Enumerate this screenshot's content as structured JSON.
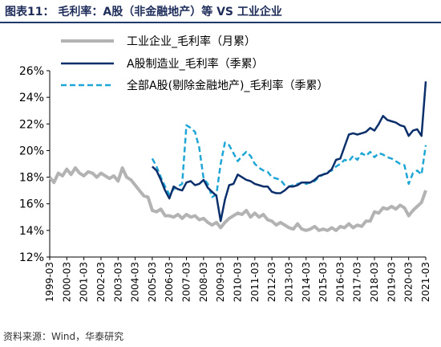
{
  "title": "图表11： 毛利率：A股（非金融地产）等 VS 工业企业",
  "source": "资料来源：Wind，华泰研究",
  "colors": {
    "industrial": "#b3b3b3",
    "a_share": "#0b2f6b",
    "ex_fin": "#1fa6d6"
  },
  "chart_data": {
    "type": "line",
    "title": "图表11： 毛利率：A股（非金融地产）等 VS 工业企业",
    "xlabel": "",
    "ylabel": "",
    "ylim": [
      12,
      26
    ],
    "y_ticks": [
      "12%",
      "14%",
      "16%",
      "18%",
      "20%",
      "22%",
      "24%",
      "26%"
    ],
    "xlim": [
      "1999-03",
      "2021-03"
    ],
    "x_ticks": [
      "1999-03",
      "2000-03",
      "2001-03",
      "2002-03",
      "2003-03",
      "2004-03",
      "2005-03",
      "2006-03",
      "2007-03",
      "2008-03",
      "2009-03",
      "2010-03",
      "2011-03",
      "2012-03",
      "2013-03",
      "2014-03",
      "2015-03",
      "2016-03",
      "2017-03",
      "2018-03",
      "2019-03",
      "2020-03",
      "2021-03"
    ],
    "grid": false,
    "legend_position": "top",
    "series": [
      {
        "name": "工业企业_毛利率（月累）",
        "style": "solid-thick",
        "color": "#b3b3b3",
        "points": [
          [
            "1999-03",
            18.0
          ],
          [
            "1999-06",
            17.6
          ],
          [
            "1999-09",
            18.3
          ],
          [
            "1999-12",
            18.1
          ],
          [
            "2000-03",
            18.6
          ],
          [
            "2000-06",
            18.2
          ],
          [
            "2000-09",
            18.7
          ],
          [
            "2000-12",
            18.3
          ],
          [
            "2001-03",
            18.1
          ],
          [
            "2001-06",
            18.4
          ],
          [
            "2001-09",
            18.3
          ],
          [
            "2001-12",
            18.0
          ],
          [
            "2002-03",
            18.3
          ],
          [
            "2002-06",
            18.1
          ],
          [
            "2002-09",
            17.9
          ],
          [
            "2002-12",
            18.1
          ],
          [
            "2003-03",
            17.7
          ],
          [
            "2003-06",
            18.7
          ],
          [
            "2003-09",
            18.0
          ],
          [
            "2003-12",
            17.8
          ],
          [
            "2004-03",
            17.4
          ],
          [
            "2004-06",
            17.0
          ],
          [
            "2004-09",
            16.6
          ],
          [
            "2004-12",
            16.5
          ],
          [
            "2005-03",
            15.5
          ],
          [
            "2005-06",
            15.4
          ],
          [
            "2005-09",
            15.6
          ],
          [
            "2005-12",
            15.1
          ],
          [
            "2006-03",
            15.1
          ],
          [
            "2006-06",
            15.0
          ],
          [
            "2006-09",
            15.2
          ],
          [
            "2006-12",
            14.9
          ],
          [
            "2007-03",
            15.2
          ],
          [
            "2007-06",
            15.0
          ],
          [
            "2007-09",
            15.1
          ],
          [
            "2007-12",
            14.8
          ],
          [
            "2008-03",
            14.9
          ],
          [
            "2008-06",
            14.6
          ],
          [
            "2008-09",
            14.4
          ],
          [
            "2008-12",
            14.6
          ],
          [
            "2009-03",
            14.2
          ],
          [
            "2009-06",
            14.6
          ],
          [
            "2009-09",
            14.9
          ],
          [
            "2009-12",
            15.1
          ],
          [
            "2010-03",
            15.3
          ],
          [
            "2010-06",
            15.2
          ],
          [
            "2010-09",
            15.5
          ],
          [
            "2010-12",
            15.0
          ],
          [
            "2011-03",
            15.3
          ],
          [
            "2011-06",
            15.0
          ],
          [
            "2011-09",
            15.2
          ],
          [
            "2011-12",
            14.8
          ],
          [
            "2012-03",
            14.7
          ],
          [
            "2012-06",
            14.4
          ],
          [
            "2012-09",
            14.6
          ],
          [
            "2012-12",
            14.4
          ],
          [
            "2013-03",
            14.2
          ],
          [
            "2013-06",
            14.1
          ],
          [
            "2013-09",
            14.5
          ],
          [
            "2013-12",
            14.1
          ],
          [
            "2014-03",
            14.0
          ],
          [
            "2014-06",
            14.1
          ],
          [
            "2014-09",
            14.3
          ],
          [
            "2014-12",
            14.0
          ],
          [
            "2015-03",
            14.1
          ],
          [
            "2015-06",
            14.0
          ],
          [
            "2015-09",
            14.2
          ],
          [
            "2015-12",
            14.0
          ],
          [
            "2016-03",
            14.3
          ],
          [
            "2016-06",
            14.2
          ],
          [
            "2016-09",
            14.5
          ],
          [
            "2016-12",
            14.2
          ],
          [
            "2017-03",
            14.4
          ],
          [
            "2017-06",
            14.3
          ],
          [
            "2017-09",
            14.7
          ],
          [
            "2017-12",
            14.7
          ],
          [
            "2018-03",
            15.4
          ],
          [
            "2018-06",
            15.3
          ],
          [
            "2018-09",
            15.7
          ],
          [
            "2018-12",
            15.6
          ],
          [
            "2019-03",
            15.8
          ],
          [
            "2019-06",
            15.6
          ],
          [
            "2019-09",
            15.9
          ],
          [
            "2019-12",
            15.7
          ],
          [
            "2020-03",
            15.1
          ],
          [
            "2020-06",
            15.5
          ],
          [
            "2020-09",
            15.8
          ],
          [
            "2020-12",
            16.1
          ],
          [
            "2021-03",
            17.0
          ]
        ]
      },
      {
        "name": "A股制造业_毛利率（季累）",
        "style": "solid",
        "color": "#0b2f6b",
        "points": [
          [
            "2005-03",
            18.8
          ],
          [
            "2005-06",
            18.5
          ],
          [
            "2005-09",
            17.8
          ],
          [
            "2005-12",
            17.0
          ],
          [
            "2006-03",
            16.4
          ],
          [
            "2006-06",
            17.3
          ],
          [
            "2006-09",
            17.1
          ],
          [
            "2006-12",
            17.0
          ],
          [
            "2007-03",
            17.6
          ],
          [
            "2007-06",
            17.7
          ],
          [
            "2007-09",
            17.4
          ],
          [
            "2007-12",
            17.5
          ],
          [
            "2008-03",
            17.8
          ],
          [
            "2008-06",
            17.2
          ],
          [
            "2008-09",
            16.9
          ],
          [
            "2008-12",
            16.6
          ],
          [
            "2009-03",
            14.7
          ],
          [
            "2009-06",
            16.3
          ],
          [
            "2009-09",
            17.4
          ],
          [
            "2009-12",
            17.5
          ],
          [
            "2010-03",
            18.2
          ],
          [
            "2010-06",
            18.0
          ],
          [
            "2010-09",
            17.8
          ],
          [
            "2010-12",
            17.7
          ],
          [
            "2011-03",
            17.5
          ],
          [
            "2011-06",
            17.4
          ],
          [
            "2011-09",
            17.3
          ],
          [
            "2011-12",
            17.3
          ],
          [
            "2012-03",
            16.9
          ],
          [
            "2012-06",
            16.8
          ],
          [
            "2012-09",
            16.8
          ],
          [
            "2012-12",
            17.0
          ],
          [
            "2013-03",
            17.3
          ],
          [
            "2013-06",
            17.3
          ],
          [
            "2013-09",
            17.4
          ],
          [
            "2013-12",
            17.6
          ],
          [
            "2014-03",
            17.6
          ],
          [
            "2014-06",
            17.6
          ],
          [
            "2014-09",
            17.8
          ],
          [
            "2014-12",
            18.1
          ],
          [
            "2015-03",
            18.2
          ],
          [
            "2015-06",
            18.3
          ],
          [
            "2015-09",
            18.6
          ],
          [
            "2015-12",
            19.3
          ],
          [
            "2016-03",
            19.4
          ],
          [
            "2016-06",
            20.3
          ],
          [
            "2016-09",
            21.2
          ],
          [
            "2016-12",
            21.3
          ],
          [
            "2017-03",
            21.2
          ],
          [
            "2017-06",
            21.3
          ],
          [
            "2017-09",
            21.4
          ],
          [
            "2017-12",
            21.7
          ],
          [
            "2018-03",
            21.5
          ],
          [
            "2018-06",
            22.0
          ],
          [
            "2018-09",
            22.6
          ],
          [
            "2018-12",
            22.3
          ],
          [
            "2019-03",
            22.2
          ],
          [
            "2019-06",
            22.1
          ],
          [
            "2019-09",
            21.9
          ],
          [
            "2019-12",
            21.8
          ],
          [
            "2020-03",
            21.1
          ],
          [
            "2020-06",
            21.5
          ],
          [
            "2020-09",
            21.6
          ],
          [
            "2020-12",
            21.1
          ],
          [
            "2021-03",
            25.2
          ]
        ]
      },
      {
        "name": "全部A股(剔除金融地产)_毛利率（季累）",
        "style": "dashed",
        "color": "#1fa6d6",
        "points": [
          [
            "2005-03",
            19.4
          ],
          [
            "2005-06",
            18.8
          ],
          [
            "2005-09",
            18.0
          ],
          [
            "2005-12",
            17.3
          ],
          [
            "2006-03",
            16.7
          ],
          [
            "2006-06",
            17.1
          ],
          [
            "2006-09",
            17.3
          ],
          [
            "2006-12",
            17.5
          ],
          [
            "2007-03",
            21.9
          ],
          [
            "2007-06",
            21.7
          ],
          [
            "2007-09",
            21.4
          ],
          [
            "2007-12",
            20.2
          ],
          [
            "2008-03",
            17.9
          ],
          [
            "2008-06",
            17.5
          ],
          [
            "2008-09",
            16.5
          ],
          [
            "2008-12",
            16.7
          ],
          [
            "2009-03",
            19.0
          ],
          [
            "2009-06",
            20.6
          ],
          [
            "2009-09",
            20.4
          ],
          [
            "2009-12",
            19.8
          ],
          [
            "2010-03",
            19.2
          ],
          [
            "2010-06",
            19.6
          ],
          [
            "2010-09",
            19.9
          ],
          [
            "2010-12",
            19.6
          ],
          [
            "2011-03",
            19.0
          ],
          [
            "2011-06",
            18.7
          ],
          [
            "2011-09",
            18.5
          ],
          [
            "2011-12",
            18.4
          ],
          [
            "2012-03",
            18.0
          ],
          [
            "2012-06",
            17.9
          ],
          [
            "2012-09",
            17.8
          ],
          [
            "2012-12",
            17.4
          ],
          [
            "2013-03",
            17.3
          ],
          [
            "2013-06",
            17.4
          ],
          [
            "2013-09",
            17.5
          ],
          [
            "2013-12",
            17.6
          ],
          [
            "2014-03",
            17.5
          ],
          [
            "2014-06",
            17.6
          ],
          [
            "2014-09",
            17.7
          ],
          [
            "2014-12",
            18.0
          ],
          [
            "2015-03",
            18.2
          ],
          [
            "2015-06",
            18.4
          ],
          [
            "2015-09",
            18.5
          ],
          [
            "2015-12",
            18.8
          ],
          [
            "2016-03",
            19.0
          ],
          [
            "2016-06",
            19.3
          ],
          [
            "2016-09",
            19.2
          ],
          [
            "2016-12",
            19.6
          ],
          [
            "2017-03",
            19.3
          ],
          [
            "2017-06",
            19.8
          ],
          [
            "2017-09",
            19.6
          ],
          [
            "2017-12",
            19.9
          ],
          [
            "2018-03",
            19.5
          ],
          [
            "2018-06",
            19.8
          ],
          [
            "2018-09",
            19.7
          ],
          [
            "2018-12",
            19.5
          ],
          [
            "2019-03",
            19.4
          ],
          [
            "2019-06",
            19.2
          ],
          [
            "2019-09",
            19.0
          ],
          [
            "2019-12",
            18.9
          ],
          [
            "2020-03",
            17.5
          ],
          [
            "2020-06",
            18.3
          ],
          [
            "2020-09",
            18.5
          ],
          [
            "2020-12",
            18.2
          ],
          [
            "2021-03",
            20.4
          ]
        ]
      }
    ]
  }
}
